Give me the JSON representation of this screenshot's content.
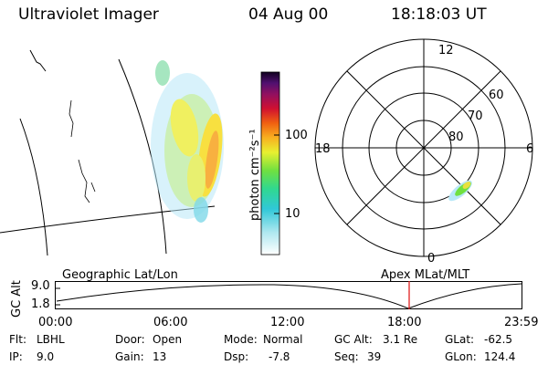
{
  "header": {
    "title": "Ultraviolet Imager",
    "date": "04 Aug 00",
    "time": "18:18:03 UT"
  },
  "colorbar": {
    "unit_label": "photon cm⁻²s⁻¹",
    "ticks": [
      "100",
      "10"
    ]
  },
  "polar_plot": {
    "mlt_labels": [
      "12",
      "18",
      "6",
      "0"
    ],
    "lat_labels": [
      "60",
      "70",
      "80"
    ]
  },
  "orbit_panel": {
    "left_title": "Geographic Lat/Lon",
    "right_title": "Apex MLat/MLT",
    "ylabel": "GC Alt",
    "y_ticks": [
      "9.0",
      "1.8"
    ],
    "x_ticks": [
      "00:00",
      "06:00",
      "12:00",
      "18:00",
      "23:59"
    ],
    "marker_color": "#e02020"
  },
  "info": {
    "flt_label": "Flt:",
    "flt_value": "LBHL",
    "ip_label": "IP:",
    "ip_value": "9.0",
    "door_label": "Door:",
    "door_value": "Open",
    "gain_label": "Gain:",
    "gain_value": "13",
    "mode_label": "Mode:",
    "mode_value": "Normal",
    "dsp_label": "Dsp:",
    "dsp_value": "-7.8",
    "gcalt_label": "GC Alt:",
    "gcalt_value": "3.1 Re",
    "seq_label": "Seq:",
    "seq_value": "39",
    "glat_label": "GLat:",
    "glat_value": "-62.5",
    "glon_label": "GLon:",
    "glon_value": "124.4"
  }
}
